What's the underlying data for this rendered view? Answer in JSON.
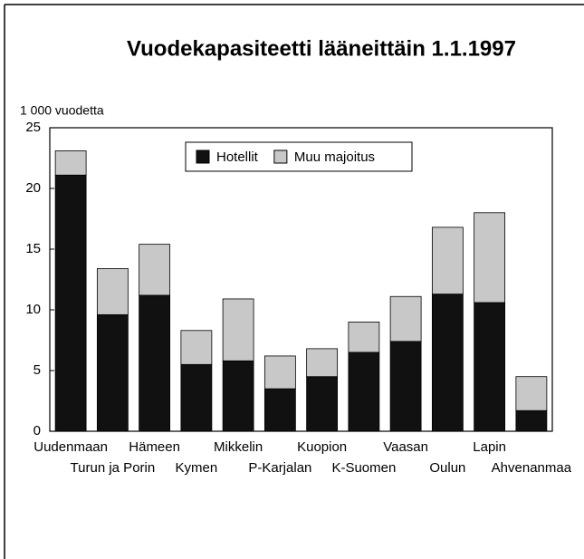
{
  "chart_data": {
    "type": "stacked_bar",
    "title": "Vuodekapasiteetti lääneittäin 1.1.1997",
    "ylabel": "1 000 vuodetta",
    "categories": [
      "Uudenmaan",
      "Turun ja Porin",
      "Hämeen",
      "Kymen",
      "Mikkelin",
      "P-Karjalan",
      "Kuopion",
      "K-Suomen",
      "Vaasan",
      "Oulun",
      "Lapin",
      "Ahvenanmaa"
    ],
    "series": [
      {
        "name": "Hotellit",
        "color": "#111111",
        "values": [
          21.1,
          9.6,
          11.2,
          5.5,
          5.8,
          3.5,
          4.5,
          6.5,
          7.4,
          11.3,
          10.6,
          1.7
        ]
      },
      {
        "name": "Muu majoitus",
        "color": "#c8c8c8",
        "values": [
          2.0,
          3.8,
          4.2,
          2.8,
          5.1,
          2.7,
          2.3,
          2.5,
          3.7,
          5.5,
          7.4,
          2.8
        ]
      }
    ],
    "ylim": [
      0,
      25
    ],
    "yticks": [
      0,
      5,
      10,
      15,
      20,
      25
    ],
    "legend": "top"
  }
}
